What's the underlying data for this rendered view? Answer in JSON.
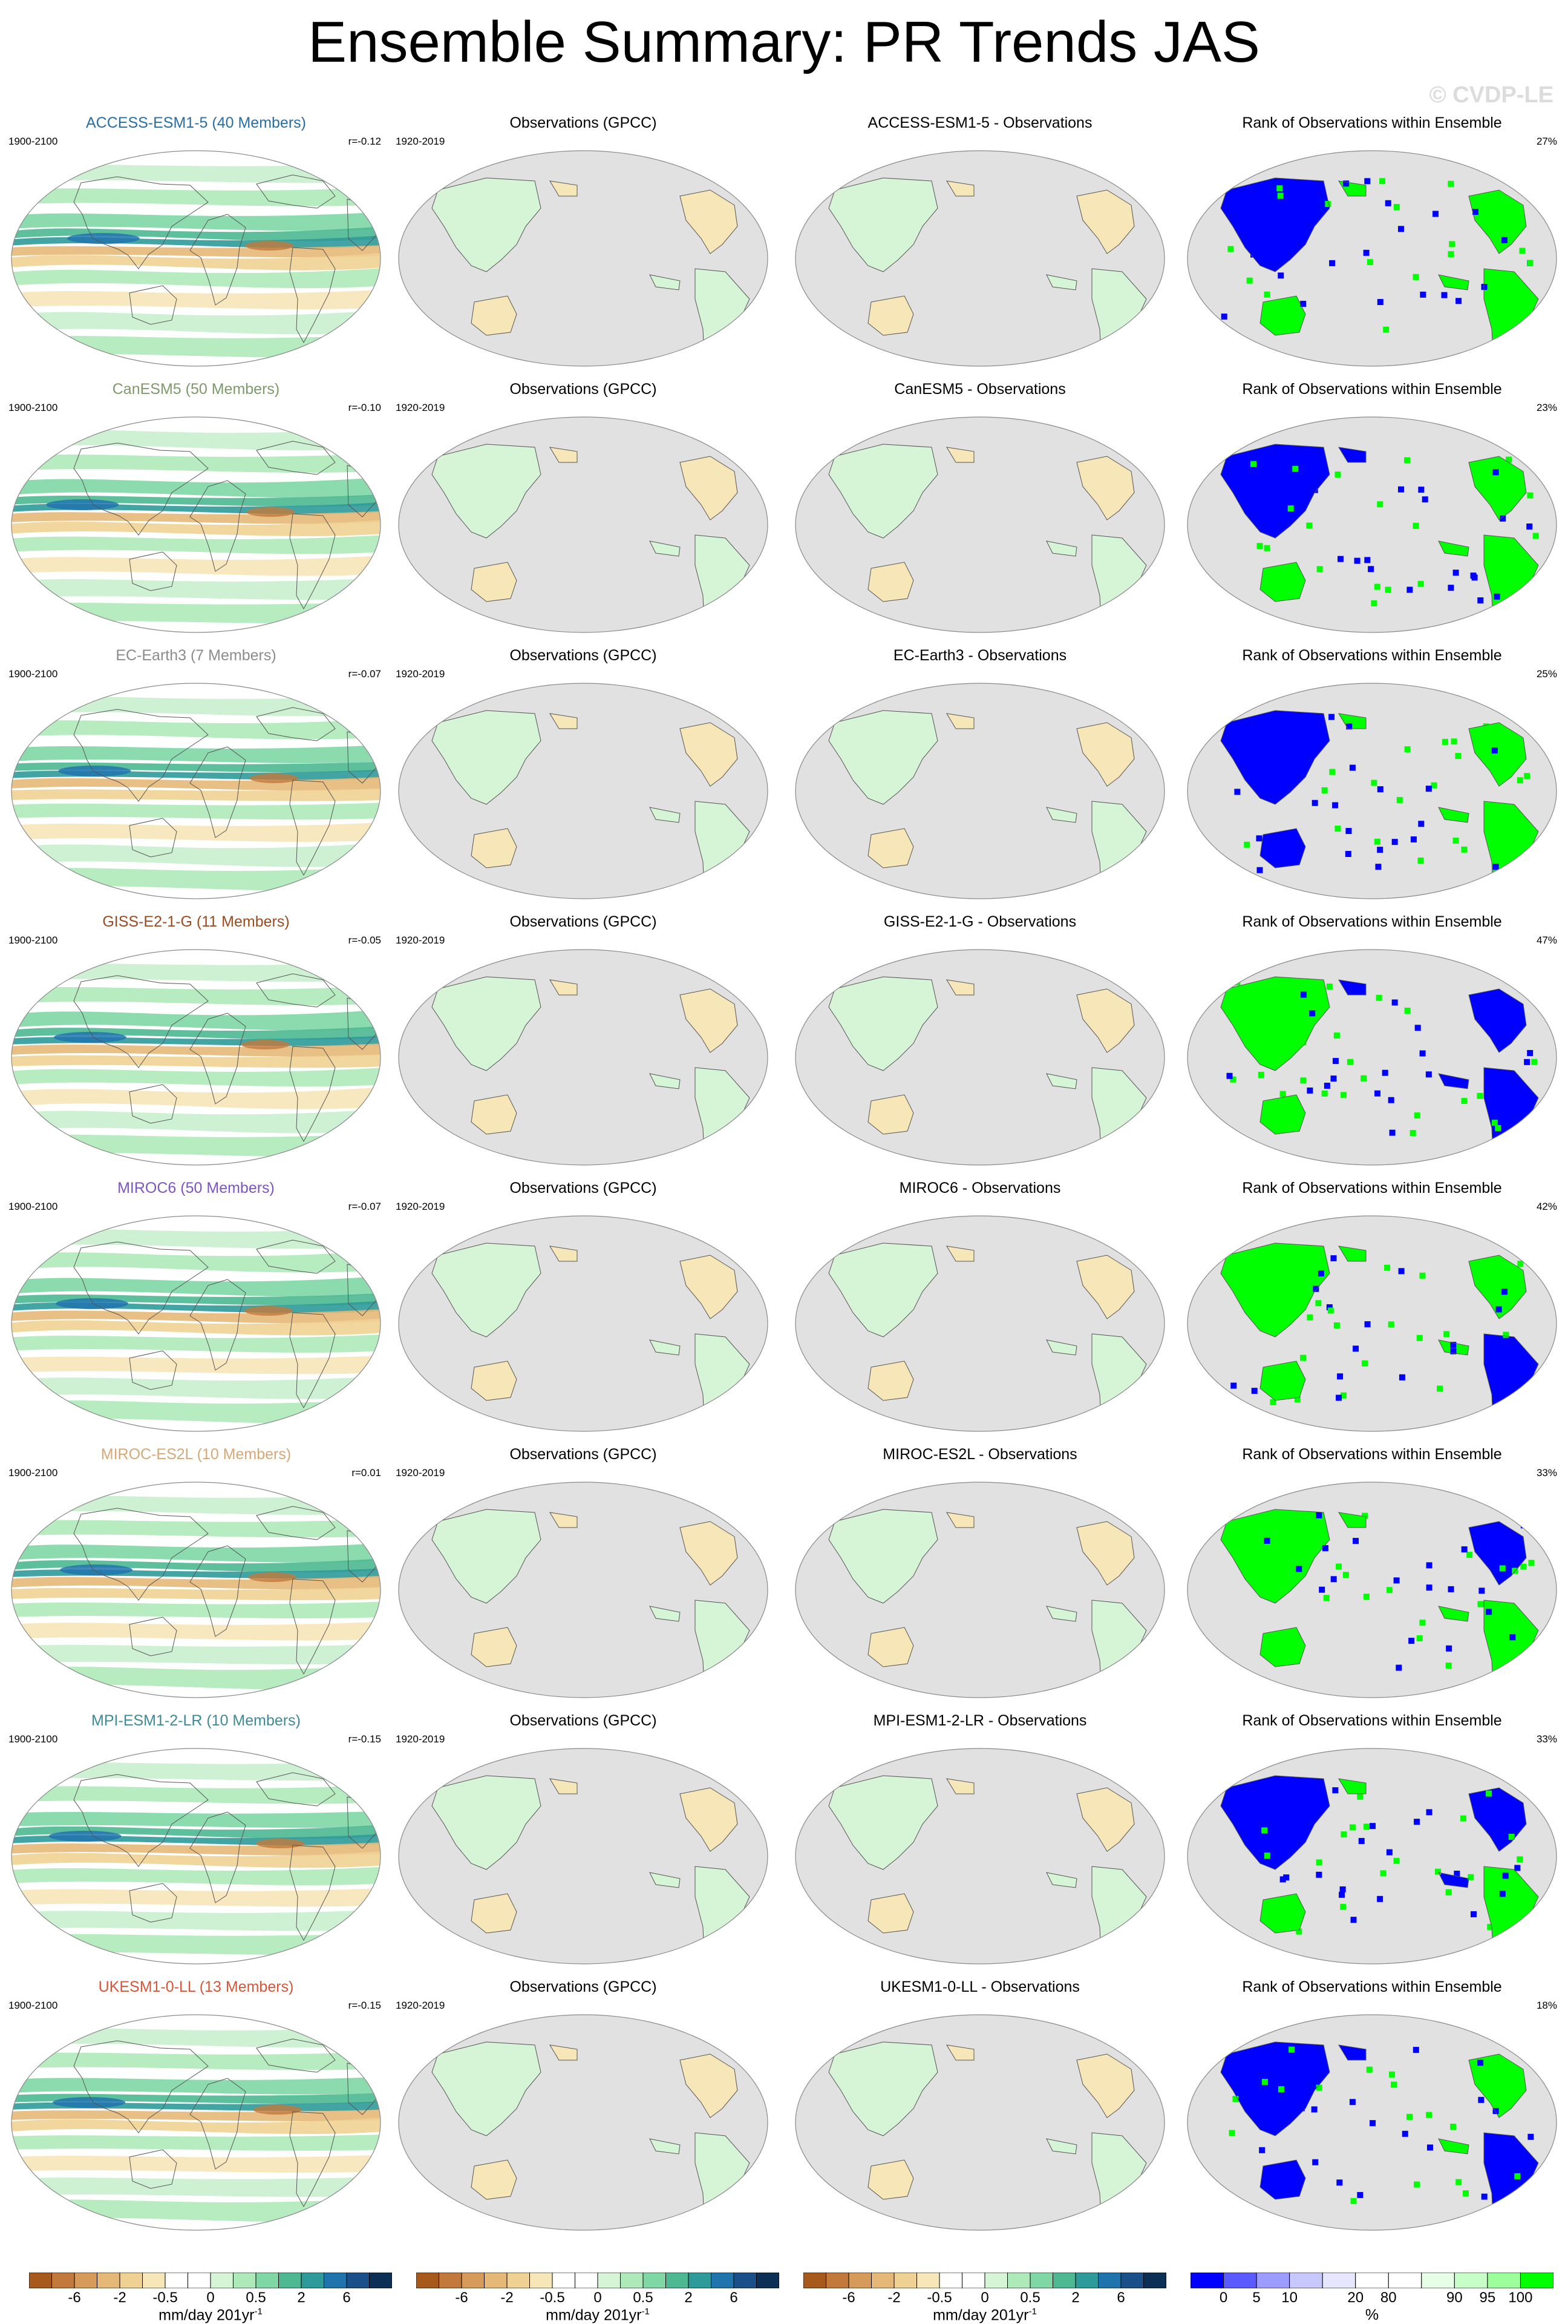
{
  "title": "Ensemble Summary: PR Trends JAS",
  "credit": "© CVDP-LE",
  "obs_title": "Observations (GPCC)",
  "obs_years": "1920-2019",
  "model_years": "1900-2100",
  "rank_title": "Rank of Observations within Ensemble",
  "rows": [
    {
      "model_label": "ACCESS-ESM1-5 (40 Members)",
      "color": "#2a6ea6",
      "corr": "r=-0.12",
      "diff_title": "ACCESS-ESM1-5 - Observations",
      "rank_pct": "27%"
    },
    {
      "model_label": "CanESM5 (50 Members)",
      "color": "#7e9a6a",
      "corr": "r=-0.10",
      "diff_title": "CanESM5 - Observations",
      "rank_pct": "23%"
    },
    {
      "model_label": "EC-Earth3 (7 Members)",
      "color": "#8c8c8c",
      "corr": "r=-0.07",
      "diff_title": "EC-Earth3 - Observations",
      "rank_pct": "25%"
    },
    {
      "model_label": "GISS-E2-1-G (11 Members)",
      "color": "#9c4a1e",
      "corr": "r=-0.05",
      "diff_title": "GISS-E2-1-G - Observations",
      "rank_pct": "47%"
    },
    {
      "model_label": "MIROC6 (50 Members)",
      "color": "#7b55c4",
      "corr": "r=-0.07",
      "diff_title": "MIROC6 - Observations",
      "rank_pct": "42%"
    },
    {
      "model_label": "MIROC-ES2L (10 Members)",
      "color": "#d6a878",
      "corr": "r=0.01",
      "diff_title": "MIROC-ES2L - Observations",
      "rank_pct": "33%"
    },
    {
      "model_label": "MPI-ESM1-2-LR (10 Members)",
      "color": "#3e8a96",
      "corr": "r=-0.15",
      "diff_title": "MPI-ESM1-2-LR - Observations",
      "rank_pct": "33%"
    },
    {
      "model_label": "UKESM1-0-LL (13 Members)",
      "color": "#d4573a",
      "corr": "r=-0.15",
      "diff_title": "UKESM1-0-LL - Observations",
      "rank_pct": "18%"
    }
  ],
  "colorbars": {
    "trend": {
      "colors": [
        "#a8591c",
        "#c3793b",
        "#d69a5a",
        "#e5b877",
        "#f0d194",
        "#f7e6b8",
        "#ffffff",
        "#ffffff",
        "#d6f5d6",
        "#aeeab9",
        "#7fd7a6",
        "#4db891",
        "#2f9a9a",
        "#2074ae",
        "#1a4f8a",
        "#0c2f55"
      ],
      "ticks": [
        "-6",
        "-2",
        "-0.5",
        "0",
        "0.5",
        "2",
        "6"
      ],
      "tick_pos": [
        2,
        4,
        6,
        8,
        10,
        12,
        14
      ],
      "units": "mm/day 201yr",
      "units_sup": "-1"
    },
    "rank": {
      "colors": [
        "#0000ff",
        "#5a5aff",
        "#9c9cff",
        "#c8c8ff",
        "#e6e6ff",
        "#ffffff",
        "#ffffff",
        "#e6ffe6",
        "#c8ffc8",
        "#9cff9c",
        "#00ff00"
      ],
      "ticks": [
        "0",
        "5",
        "10",
        "20",
        "80",
        "90",
        "95",
        "100"
      ],
      "tick_pos": [
        1,
        2,
        3,
        5,
        6,
        8,
        9,
        10
      ],
      "units": "%"
    }
  }
}
